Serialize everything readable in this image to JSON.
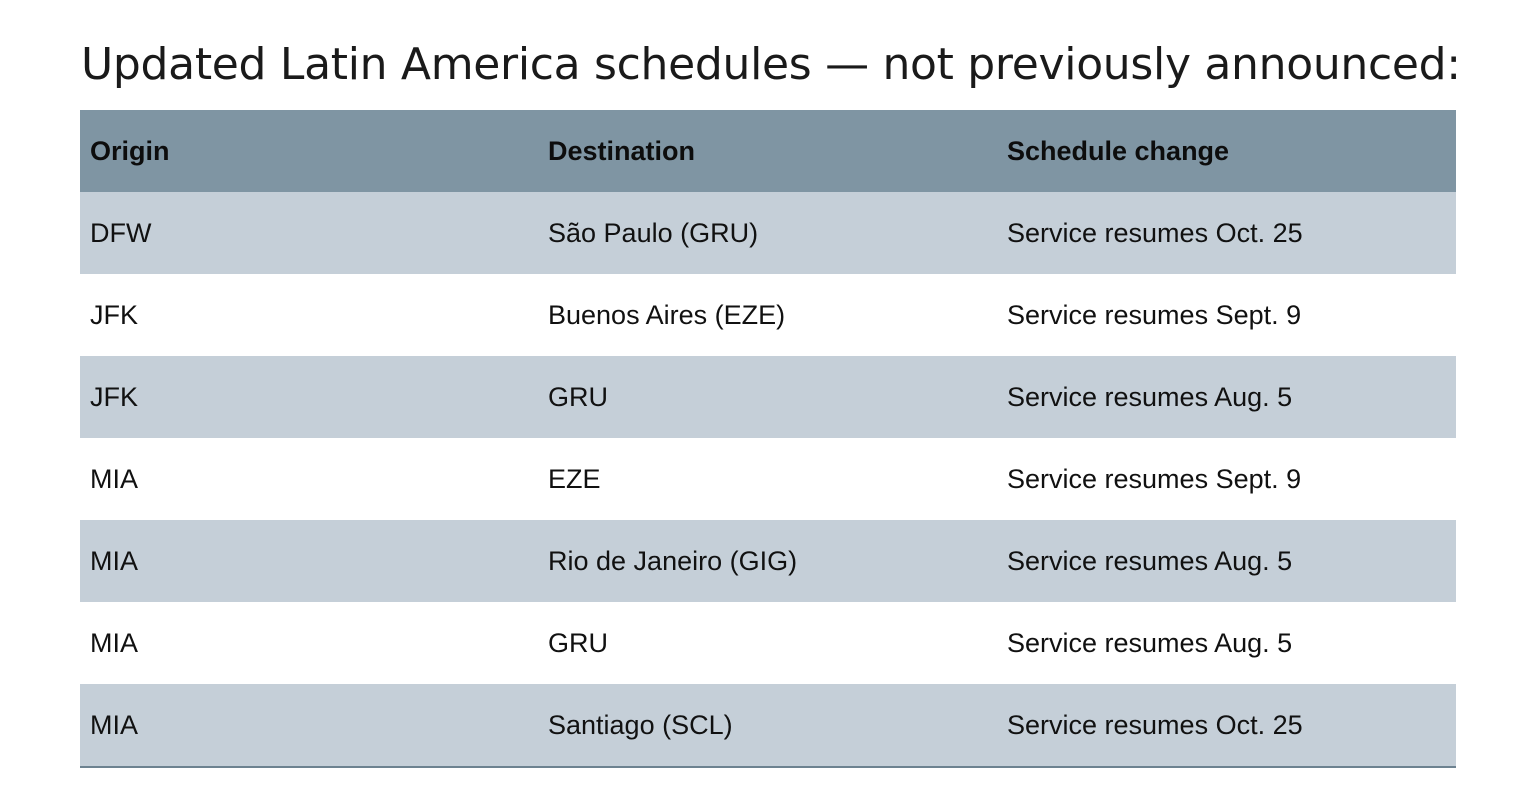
{
  "title": "Updated Latin America schedules — not previously announced:",
  "table": {
    "headers": [
      "Origin",
      "Destination",
      "Schedule change"
    ],
    "rows": [
      [
        "DFW",
        "São Paulo (GRU)",
        "Service resumes Oct. 25"
      ],
      [
        "JFK",
        "Buenos Aires (EZE)",
        "Service resumes Sept. 9"
      ],
      [
        "JFK",
        "GRU",
        "Service resumes Aug. 5"
      ],
      [
        "MIA",
        "EZE",
        "Service resumes Sept. 9"
      ],
      [
        "MIA",
        "Rio de Janeiro (GIG)",
        "Service resumes Aug. 5"
      ],
      [
        "MIA",
        "GRU",
        "Service resumes Aug. 5"
      ],
      [
        "MIA",
        "Santiago (SCL)",
        "Service resumes Oct. 25"
      ]
    ]
  },
  "colors": {
    "header_background": "#7f95a3",
    "shaded_row_background": "#c5cfd8",
    "plain_row_background": "#ffffff",
    "bottom_rule": "#6d8290"
  }
}
